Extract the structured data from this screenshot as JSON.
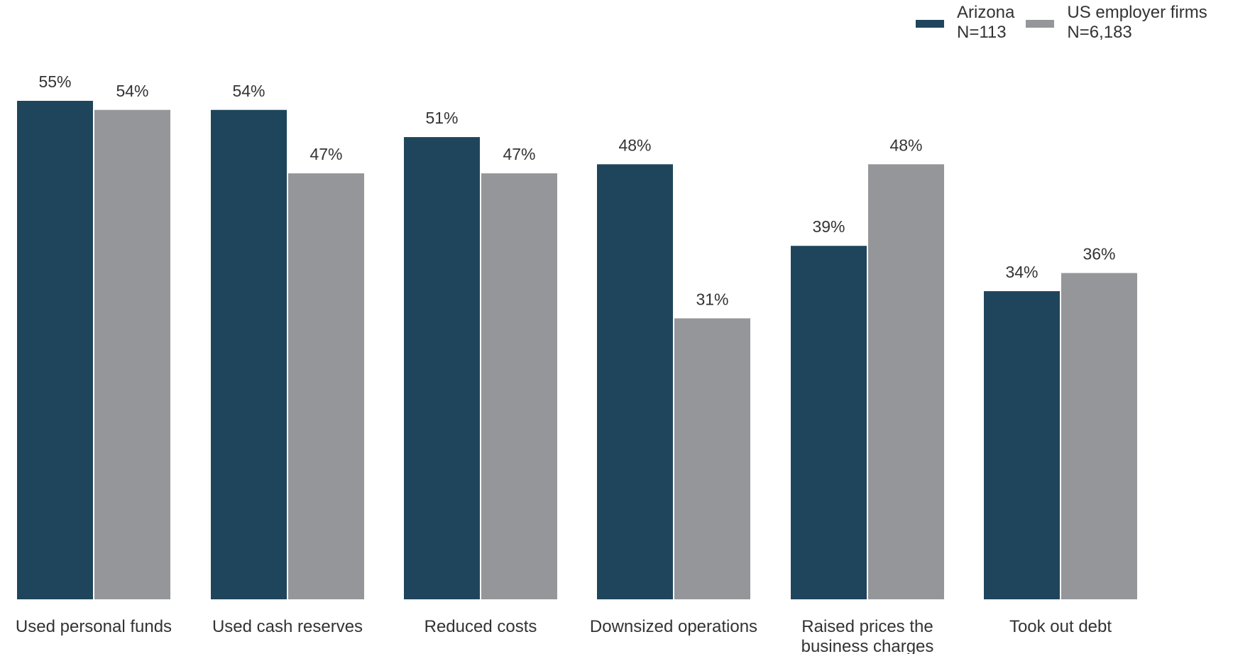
{
  "chart_data": {
    "type": "bar",
    "categories": [
      [
        "Used personal funds"
      ],
      [
        "Used cash reserves"
      ],
      [
        "Reduced costs"
      ],
      [
        "Downsized operations"
      ],
      [
        "Raised prices the",
        "business charges"
      ],
      [
        "Took out debt"
      ]
    ],
    "series": [
      {
        "name": "Arizona",
        "sample": "N=113",
        "color": "#1f455c",
        "values": [
          55,
          54,
          51,
          48,
          39,
          34
        ],
        "labels": [
          "55%",
          "54%",
          "51%",
          "48%",
          "39%",
          "34%"
        ]
      },
      {
        "name": "US employer firms",
        "sample": "N=6,183",
        "color": "#95969a",
        "values": [
          54,
          47,
          47,
          31,
          48,
          36
        ],
        "labels": [
          "54%",
          "47%",
          "47%",
          "31%",
          "48%",
          "36%"
        ]
      }
    ],
    "ylim": [
      0,
      55
    ],
    "legend_position": "top-right",
    "grid": false,
    "title": "",
    "xlabel": "",
    "ylabel": ""
  }
}
